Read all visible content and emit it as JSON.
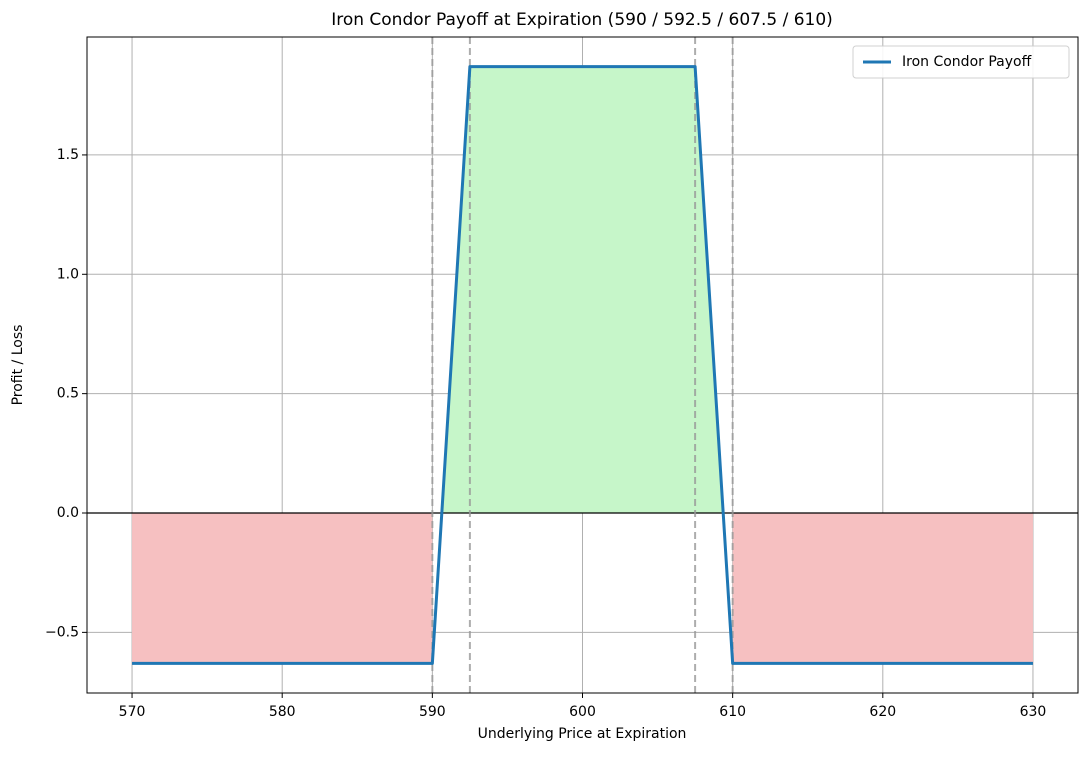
{
  "chart_data": {
    "type": "line",
    "title": "Iron Condor Payoff at Expiration (590 / 592.5 / 607.5 / 610)",
    "xlabel": "Underlying Price at Expiration",
    "ylabel": "Profit / Loss",
    "x": [
      570,
      590,
      592.5,
      607.5,
      610,
      630
    ],
    "series": [
      {
        "name": "Iron Condor Payoff",
        "color": "#1f77b4",
        "values": [
          -0.63,
          -0.63,
          1.87,
          1.87,
          -0.63,
          -0.63
        ]
      }
    ],
    "profit_fill_color": "#c6f6c9",
    "loss_fill_color": "#f6c0c1",
    "strikes": [
      590,
      592.5,
      607.5,
      610
    ],
    "hline": 0,
    "xlim": [
      567,
      633
    ],
    "ylim": [
      -0.754,
      1.994
    ],
    "xticks": [
      570,
      580,
      590,
      600,
      610,
      620,
      630
    ],
    "yticks": [
      {
        "value": -0.5,
        "label": "−0.5"
      },
      {
        "value": 0,
        "label": "0.0"
      },
      0.5,
      {
        "value": 1,
        "label": "1.0"
      },
      1.5
    ],
    "grid": true,
    "legend": "upper right"
  }
}
